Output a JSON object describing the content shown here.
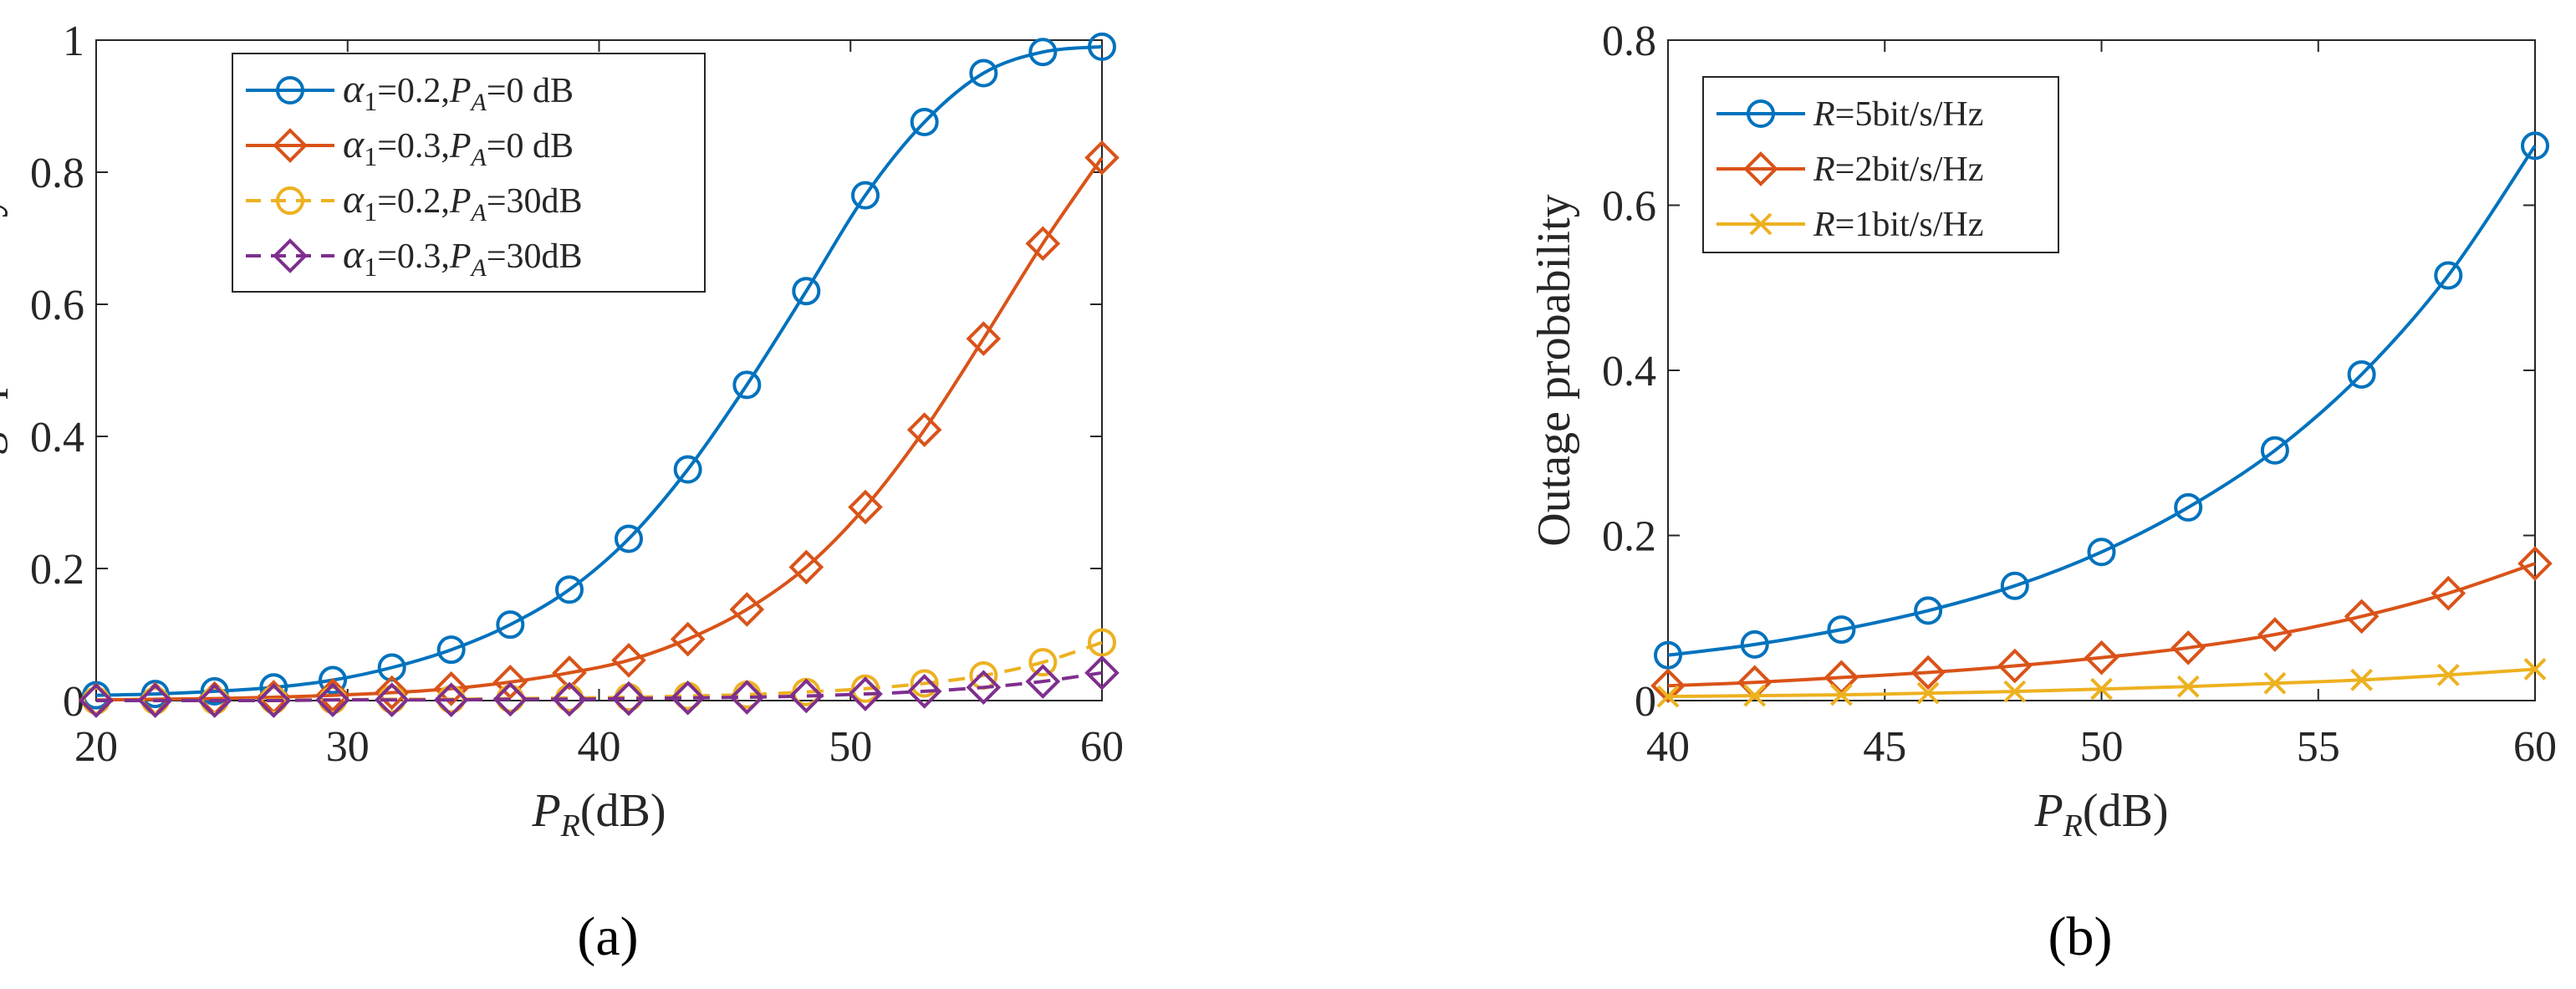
{
  "chart_data": [
    {
      "type": "line",
      "panel_label": "(a)",
      "xlabel": {
        "main": "P",
        "sub": "R",
        "suffix": "(dB)"
      },
      "ylabel": "Outage probability",
      "xlim": [
        20,
        60
      ],
      "ylim": [
        0,
        1
      ],
      "xticks": [
        20,
        30,
        40,
        50,
        60
      ],
      "yticks": [
        0,
        0.2,
        0.4,
        0.6,
        0.8,
        1
      ],
      "ytick_labels": [
        "0",
        "0.2",
        "0.4",
        "0.6",
        "0.8",
        "1"
      ],
      "legend_position": "top-left",
      "x": [
        20,
        22.35,
        24.71,
        27.06,
        29.41,
        31.76,
        34.12,
        36.47,
        38.82,
        41.18,
        43.53,
        45.88,
        48.24,
        50.59,
        52.94,
        55.29,
        57.65,
        60
      ],
      "series": [
        {
          "name": "α1=0.2,PA=0 dB",
          "legend": {
            "greek": "α",
            "greek_sub": "1",
            "val1": "=0.2,",
            "p": "P",
            "p_sub": "A",
            "val2": "=0  dB"
          },
          "color": "#0072BD",
          "marker": "circle",
          "dash": "solid",
          "values": [
            0.008,
            0.01,
            0.014,
            0.02,
            0.031,
            0.05,
            0.077,
            0.115,
            0.168,
            0.245,
            0.35,
            0.478,
            0.62,
            0.765,
            0.876,
            0.95,
            0.982,
            0.99
          ]
        },
        {
          "name": "α1=0.3,PA=0 dB",
          "legend": {
            "greek": "α",
            "greek_sub": "1",
            "val1": "=0.3,",
            "p": "P",
            "p_sub": "A",
            "val2": "=0  dB"
          },
          "color": "#D95319",
          "marker": "diamond",
          "dash": "solid",
          "values": [
            0.001,
            0.002,
            0.003,
            0.005,
            0.008,
            0.012,
            0.018,
            0.028,
            0.042,
            0.061,
            0.093,
            0.138,
            0.202,
            0.293,
            0.41,
            0.548,
            0.692,
            0.822
          ]
        },
        {
          "name": "α1=0.2,PA=30dB",
          "legend": {
            "greek": "α",
            "greek_sub": "1",
            "val1": "=0.2,",
            "p": "P",
            "p_sub": "A",
            "val2": "=30dB"
          },
          "color": "#EDB120",
          "marker": "circle",
          "dash": "dashed",
          "values": [
            0.0,
            0.0,
            0.0,
            0.001,
            0.001,
            0.002,
            0.002,
            0.003,
            0.004,
            0.005,
            0.007,
            0.009,
            0.013,
            0.018,
            0.026,
            0.038,
            0.058,
            0.088
          ]
        },
        {
          "name": "α1=0.3,PA=30dB",
          "legend": {
            "greek": "α",
            "greek_sub": "1",
            "val1": "=0.3,",
            "p": "P",
            "p_sub": "A",
            "val2": "=30dB"
          },
          "color": "#7E2F8E",
          "marker": "diamond",
          "dash": "dashed",
          "values": [
            0.0,
            0.0,
            0.0,
            0.0,
            0.001,
            0.001,
            0.001,
            0.002,
            0.002,
            0.003,
            0.004,
            0.005,
            0.007,
            0.01,
            0.014,
            0.02,
            0.029,
            0.042
          ]
        }
      ]
    },
    {
      "type": "line",
      "panel_label": "(b)",
      "xlabel": {
        "main": "P",
        "sub": "R",
        "suffix": "(dB)"
      },
      "ylabel": "Outage probability",
      "xlim": [
        40,
        60
      ],
      "ylim": [
        0,
        0.8
      ],
      "xticks": [
        40,
        45,
        50,
        55,
        60
      ],
      "yticks": [
        0,
        0.2,
        0.4,
        0.6,
        0.8
      ],
      "ytick_labels": [
        "0",
        "0.2",
        "0.4",
        "0.6",
        "0.8"
      ],
      "legend_position": "top-left",
      "x": [
        40,
        42,
        44,
        46,
        48,
        50,
        52,
        54,
        56,
        58,
        60
      ],
      "series": [
        {
          "name": "R=5bit/s/Hz",
          "legend": {
            "r": "R",
            "val": "=5bit/s/Hz"
          },
          "color": "#0072BD",
          "marker": "circle",
          "dash": "solid",
          "values": [
            0.055,
            0.068,
            0.086,
            0.109,
            0.139,
            0.18,
            0.234,
            0.303,
            0.395,
            0.515,
            0.672
          ]
        },
        {
          "name": "R=2bit/s/Hz",
          "legend": {
            "r": "R",
            "val": "=2bit/s/Hz"
          },
          "color": "#D95319",
          "marker": "diamond",
          "dash": "solid",
          "values": [
            0.018,
            0.022,
            0.028,
            0.034,
            0.042,
            0.052,
            0.064,
            0.08,
            0.102,
            0.13,
            0.166
          ]
        },
        {
          "name": "R=1bit/s/Hz",
          "legend": {
            "r": "R",
            "val": "=1bit/s/Hz"
          },
          "color": "#EDB120",
          "marker": "x",
          "dash": "solid",
          "values": [
            0.005,
            0.006,
            0.007,
            0.009,
            0.011,
            0.014,
            0.017,
            0.021,
            0.025,
            0.031,
            0.038
          ]
        }
      ]
    }
  ]
}
